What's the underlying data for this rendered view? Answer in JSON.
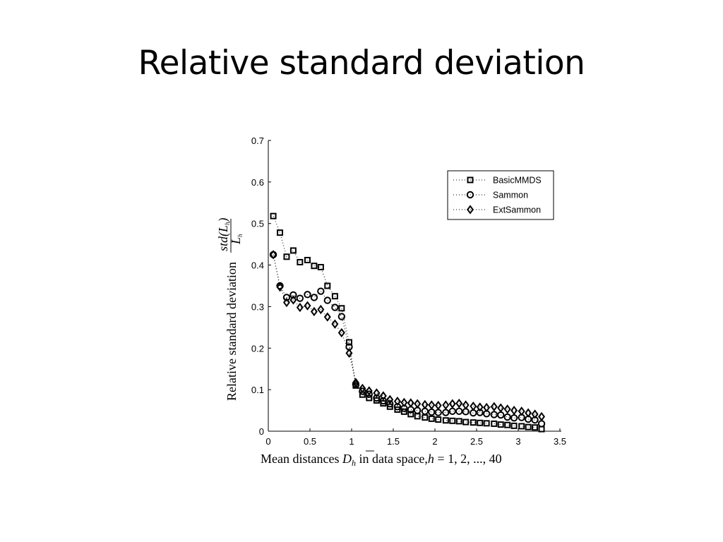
{
  "slide": {
    "title": "Relative standard deviation"
  },
  "chart_data": {
    "type": "scatter",
    "title": "",
    "xlabel": "Mean distances D̅h in data space,h = 1, 2, ..., 40",
    "ylabel": "Relative standard deviation std(Lh)/Lh",
    "xlim": [
      0,
      3.5
    ],
    "ylim": [
      0,
      0.7
    ],
    "x_ticks": [
      "0",
      "0.5",
      "1",
      "1.5",
      "2",
      "2.5",
      "3",
      "3.5"
    ],
    "y_ticks": [
      "0",
      "0.1",
      "0.2",
      "0.3",
      "0.4",
      "0.5",
      "0.6",
      "0.7"
    ],
    "x_tick_values": [
      0,
      0.5,
      1,
      1.5,
      2,
      2.5,
      3,
      3.5
    ],
    "y_tick_values": [
      0,
      0.1,
      0.2,
      0.3,
      0.4,
      0.5,
      0.6,
      0.7
    ],
    "grid": false,
    "legend_position": "top-right",
    "x": [
      0.06,
      0.14,
      0.22,
      0.3,
      0.38,
      0.47,
      0.55,
      0.63,
      0.71,
      0.8,
      0.88,
      0.97,
      1.05,
      1.13,
      1.21,
      1.3,
      1.38,
      1.46,
      1.55,
      1.63,
      1.71,
      1.79,
      1.88,
      1.96,
      2.04,
      2.13,
      2.21,
      2.29,
      2.37,
      2.46,
      2.54,
      2.62,
      2.71,
      2.79,
      2.87,
      2.95,
      3.04,
      3.12,
      3.2,
      3.28
    ],
    "series": [
      {
        "name": "BasicMMDS",
        "marker": "square",
        "values": [
          0.518,
          0.478,
          0.42,
          0.435,
          0.407,
          0.412,
          0.398,
          0.395,
          0.35,
          0.325,
          0.296,
          0.214,
          0.11,
          0.088,
          0.08,
          0.074,
          0.067,
          0.059,
          0.052,
          0.047,
          0.041,
          0.036,
          0.033,
          0.03,
          0.028,
          0.026,
          0.025,
          0.024,
          0.022,
          0.021,
          0.02,
          0.019,
          0.018,
          0.016,
          0.015,
          0.013,
          0.012,
          0.01,
          0.009,
          0.005
        ]
      },
      {
        "name": "Sammon",
        "marker": "circle",
        "values": [
          0.425,
          0.35,
          0.322,
          0.328,
          0.32,
          0.329,
          0.322,
          0.337,
          0.315,
          0.298,
          0.276,
          0.203,
          0.113,
          0.096,
          0.089,
          0.08,
          0.073,
          0.066,
          0.059,
          0.055,
          0.052,
          0.05,
          0.048,
          0.046,
          0.045,
          0.045,
          0.048,
          0.048,
          0.047,
          0.044,
          0.045,
          0.042,
          0.04,
          0.039,
          0.034,
          0.032,
          0.033,
          0.029,
          0.027,
          0.018
        ]
      },
      {
        "name": "ExtSammon",
        "marker": "diamond",
        "values": [
          0.425,
          0.347,
          0.31,
          0.316,
          0.298,
          0.302,
          0.288,
          0.293,
          0.275,
          0.258,
          0.237,
          0.188,
          0.117,
          0.103,
          0.097,
          0.092,
          0.085,
          0.076,
          0.072,
          0.069,
          0.068,
          0.066,
          0.064,
          0.063,
          0.062,
          0.063,
          0.066,
          0.067,
          0.063,
          0.06,
          0.058,
          0.057,
          0.059,
          0.056,
          0.053,
          0.05,
          0.048,
          0.044,
          0.041,
          0.035
        ]
      }
    ],
    "legend": [
      "BasicMMDS",
      "Sammon",
      "ExtSammon"
    ]
  }
}
